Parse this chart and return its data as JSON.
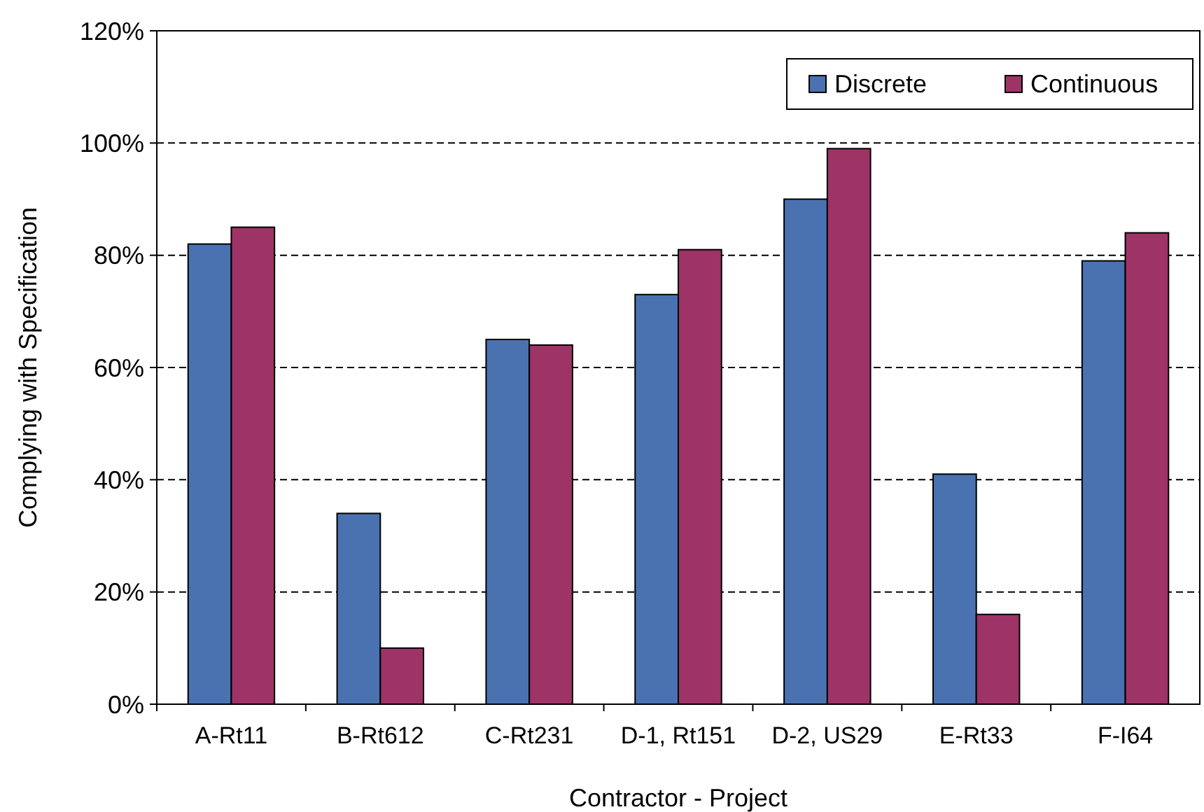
{
  "chart_data": {
    "type": "bar",
    "xlabel": "Contractor - Project",
    "ylabel": "Complying with Specification",
    "categories": [
      "A-Rt11",
      "B-Rt612",
      "C-Rt231",
      "D-1, Rt151",
      "D-2, US29",
      "E-Rt33",
      "F-I64"
    ],
    "series": [
      {
        "name": "Discrete",
        "color": "#4a72b0",
        "values": [
          82,
          34,
          65,
          73,
          90,
          41,
          79
        ]
      },
      {
        "name": "Continuous",
        "color": "#9e3366",
        "values": [
          85,
          10,
          64,
          81,
          99,
          16,
          84
        ]
      }
    ],
    "ylim": [
      0,
      120
    ],
    "yticks": [
      {
        "value": 0,
        "label": "0%"
      },
      {
        "value": 20,
        "label": "20%"
      },
      {
        "value": 40,
        "label": "40%"
      },
      {
        "value": 60,
        "label": "60%"
      },
      {
        "value": 80,
        "label": "80%"
      },
      {
        "value": 100,
        "label": "100%"
      },
      {
        "value": 120,
        "label": "120%"
      }
    ],
    "grid": "y",
    "legend": "top right"
  }
}
